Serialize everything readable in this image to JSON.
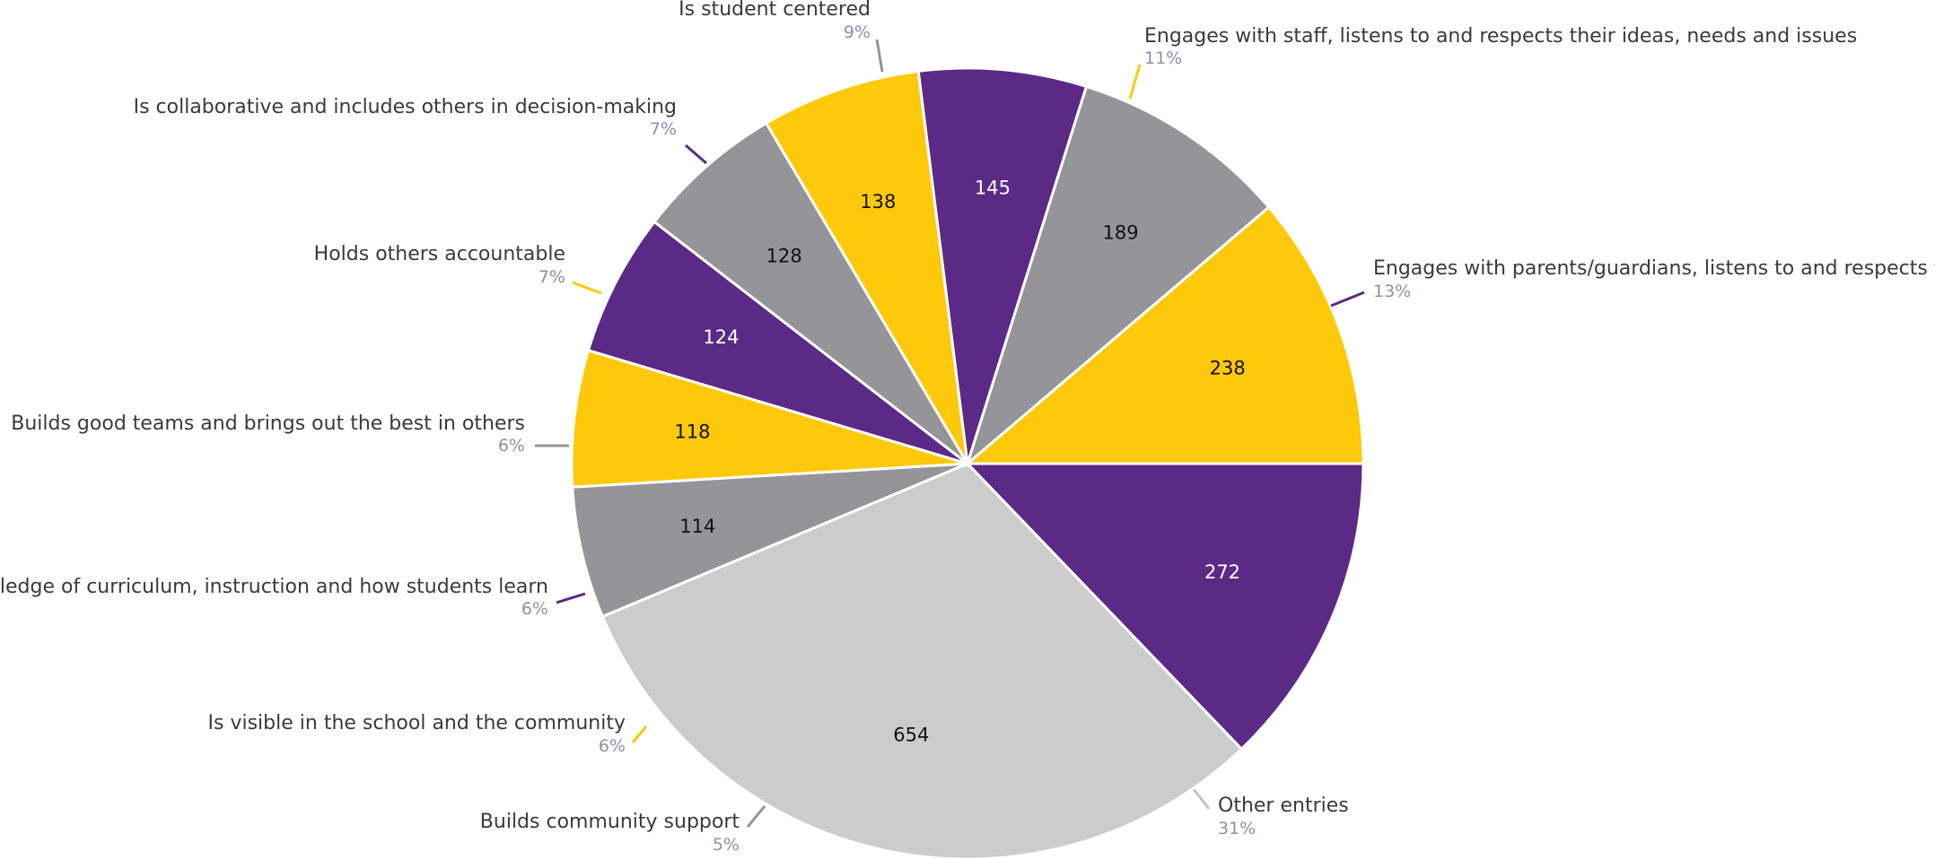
{
  "chart_data": {
    "type": "pie",
    "title": "",
    "legend": "none",
    "slices": [
      {
        "label": "Engages with parents/guardians, listens to and respects th",
        "value": 272,
        "percent": "13%",
        "color": "#5b2a86",
        "text_color": "#ffffff"
      },
      {
        "label": "Other entries",
        "value": 654,
        "percent": "31%",
        "color": "#cccccc",
        "text_color": "#111111"
      },
      {
        "label": "Builds community support",
        "value": 114,
        "percent": "5%",
        "color": "#959599",
        "text_color": "#111111"
      },
      {
        "label": "Is visible in the school and the community",
        "value": 118,
        "percent": "6%",
        "color": "#fdc90a",
        "text_color": "#111111"
      },
      {
        "label": "wledge of curriculum, instruction and how students learn",
        "value": 124,
        "percent": "6%",
        "color": "#5b2a86",
        "text_color": "#ffffff"
      },
      {
        "label": "Builds good teams and brings out the best in others",
        "value": 128,
        "percent": "6%",
        "color": "#959599",
        "text_color": "#111111"
      },
      {
        "label": "Holds others accountable",
        "value": 138,
        "percent": "7%",
        "color": "#fdc90a",
        "text_color": "#111111"
      },
      {
        "label": "Is collaborative and includes others in decision-making",
        "value": 145,
        "percent": "7%",
        "color": "#5b2a86",
        "text_color": "#ffffff"
      },
      {
        "label": "Is student centered",
        "value": 189,
        "percent": "9%",
        "color": "#959599",
        "text_color": "#111111"
      },
      {
        "label": "Engages with staff, listens to and respects their ideas, needs and issues",
        "value": 238,
        "percent": "11%",
        "color": "#fdc90a",
        "text_color": "#111111"
      }
    ]
  }
}
